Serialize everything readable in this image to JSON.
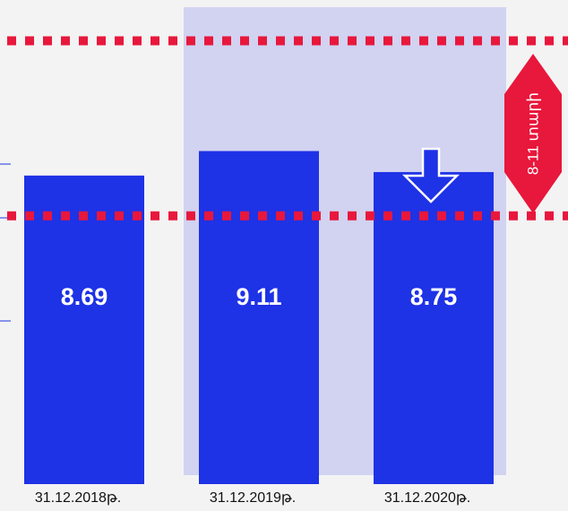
{
  "chart_data": {
    "type": "bar",
    "categories": [
      "31.12.2018թ.",
      "31.12.2019թ.",
      "31.12.2020թ."
    ],
    "values": [
      8.69,
      9.11,
      8.75
    ],
    "color": "#1e32e6",
    "ylim": [
      3.4,
      11.7
    ],
    "reference_lines": [
      8,
      11
    ],
    "reference_color": "#e8173c",
    "band_label": "8-11 տարի"
  }
}
